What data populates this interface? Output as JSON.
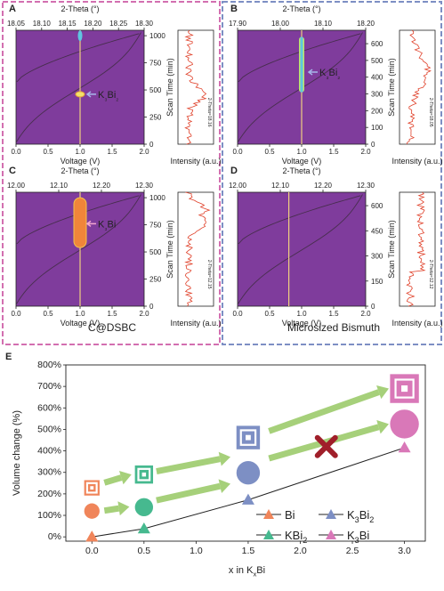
{
  "panels": [
    {
      "letter": "A",
      "top_title": "2-Theta (°)",
      "top_ticks": [
        "18.05",
        "18.10",
        "18.15",
        "18.20",
        "18.25",
        "18.30"
      ],
      "y_ticks": [
        "0",
        "250",
        "500",
        "750",
        "1000"
      ],
      "x_ticks": [
        "0.0",
        "0.5",
        "1.0",
        "1.5",
        "2.0"
      ],
      "xlabel": "Voltage (V)",
      "right_label": "Scan Time (min)",
      "intensity_label": "Intensity (a.u.)",
      "line_legend": "2-Theta=18.16",
      "phase_label": "K₃Bi₂",
      "ymax": 1050,
      "phase_time": 460,
      "voltage_marker": 1.0
    },
    {
      "letter": "B",
      "top_title": "2-Theta (°)",
      "top_ticks": [
        "17.90",
        "18.00",
        "18.10",
        "18.20"
      ],
      "y_ticks": [
        "0",
        "100",
        "200",
        "300",
        "400",
        "500",
        "600"
      ],
      "x_ticks": [
        "0.0",
        "0.5",
        "1.0",
        "1.5",
        "2.0"
      ],
      "xlabel": "Voltage (V)",
      "right_label": "Scan Time (min)",
      "intensity_label": "Intensity (a.u.)",
      "line_legend": "2-Theta=18.05",
      "phase_label": "K₃Bi₂",
      "ymax": 680,
      "phase_time": 430,
      "voltage_marker": 1.0
    },
    {
      "letter": "C",
      "top_title": "2-Theta (°)",
      "top_ticks": [
        "12.00",
        "12.10",
        "12.20",
        "12.30"
      ],
      "y_ticks": [
        "0",
        "250",
        "500",
        "750",
        "1000"
      ],
      "x_ticks": [
        "0.0",
        "0.5",
        "1.0",
        "1.5",
        "2.0"
      ],
      "xlabel": "Voltage (V)",
      "right_label": "Scan Time (min)",
      "intensity_label": "Intensity (a.u.)",
      "line_legend": "2-Theta=12.15",
      "phase_label": "K₃Bi",
      "ymax": 1050,
      "phase_time": 760,
      "voltage_marker": 1.0
    },
    {
      "letter": "D",
      "top_title": "2-Theta (°)",
      "top_ticks": [
        "12.00",
        "12.10",
        "12.20",
        "12.30"
      ],
      "y_ticks": [
        "0",
        "150",
        "300",
        "450",
        "600"
      ],
      "x_ticks": [
        "0.0",
        "0.5",
        "1.0",
        "1.5",
        "2.0"
      ],
      "xlabel": "Voltage (V)",
      "right_label": "Scan Time (min)",
      "intensity_label": "Intensity (a.u.)",
      "line_legend": "2-Theta=12.12",
      "phase_label": "",
      "ymax": 680,
      "phase_time": null,
      "voltage_marker": 0.8
    }
  ],
  "group_labels": {
    "left": "C@DSBC",
    "right": "Microsized Bismuth"
  },
  "colors": {
    "heatmap_bg": "#7f3c9c",
    "left_border": "#d36fb0",
    "right_border": "#7d8fc4",
    "intensity_line": "#e0412a",
    "marker_line": "#f0d080",
    "arrow": "#a6d07a",
    "bi": "#f0855a",
    "kbi2": "#46b98f",
    "k3bi2": "#7d8fc4",
    "k3bi": "#d978b8",
    "cross": "#a01f2a"
  },
  "panel_e": {
    "letter": "E",
    "y_ticks": [
      "0%",
      "100%",
      "200%",
      "300%",
      "400%",
      "500%",
      "600%",
      "700%",
      "800%"
    ],
    "x_ticks": [
      "0.0",
      "0.5",
      "1.0",
      "1.5",
      "2.0",
      "2.5",
      "3.0"
    ],
    "ylabel": "Volume change (%)",
    "xlabel": "x in K",
    "xlabel_sub": "x",
    "xlabel_tail": "Bi",
    "legend": [
      {
        "label": "Bi",
        "sub": "",
        "color": "#f0855a"
      },
      {
        "label": "K",
        "sub": "3",
        "tail": "Bi",
        "sub2": "2",
        "color": "#7d8fc4"
      },
      {
        "label": "KBi",
        "sub": "2",
        "color": "#46b98f"
      },
      {
        "label": "K",
        "sub": "3",
        "tail": "Bi",
        "sub2": "",
        "color": "#d978b8"
      }
    ]
  },
  "chart_data": {
    "type": "scatter",
    "xlabel": "x in KxBi",
    "ylabel": "Volume change (%)",
    "xlim": [
      -0.25,
      3.2
    ],
    "ylim": [
      -20,
      800
    ],
    "series": [
      {
        "name": "Triangles",
        "marker": "triangle",
        "x": [
          0.0,
          0.5,
          1.5,
          3.0
        ],
        "y": [
          0,
          38,
          172,
          415
        ],
        "colors": [
          "#f0855a",
          "#46b98f",
          "#7d8fc4",
          "#d978b8"
        ]
      },
      {
        "name": "Circles",
        "marker": "circle",
        "x": [
          0.0,
          0.5,
          1.5,
          3.0
        ],
        "y": [
          120,
          138,
          298,
          525
        ],
        "colors": [
          "#f0855a",
          "#46b98f",
          "#7d8fc4",
          "#d978b8"
        ]
      },
      {
        "name": "Squares",
        "marker": "square",
        "x": [
          0.0,
          0.5,
          1.5,
          3.0
        ],
        "y": [
          228,
          290,
          462,
          690
        ],
        "colors": [
          "#f0855a",
          "#46b98f",
          "#7d8fc4",
          "#d978b8"
        ]
      }
    ],
    "cross": {
      "x": 2.25,
      "y": 420
    },
    "arrows": [
      {
        "x1": 0.12,
        "y1": 252,
        "x2": 0.38,
        "y2": 290
      },
      {
        "x1": 0.62,
        "y1": 305,
        "x2": 1.33,
        "y2": 372
      },
      {
        "x1": 1.7,
        "y1": 492,
        "x2": 2.85,
        "y2": 690
      },
      {
        "x1": 0.12,
        "y1": 122,
        "x2": 0.36,
        "y2": 140
      },
      {
        "x1": 0.62,
        "y1": 170,
        "x2": 1.33,
        "y2": 247
      },
      {
        "x1": 1.7,
        "y1": 365,
        "x2": 2.85,
        "y2": 525
      }
    ]
  }
}
